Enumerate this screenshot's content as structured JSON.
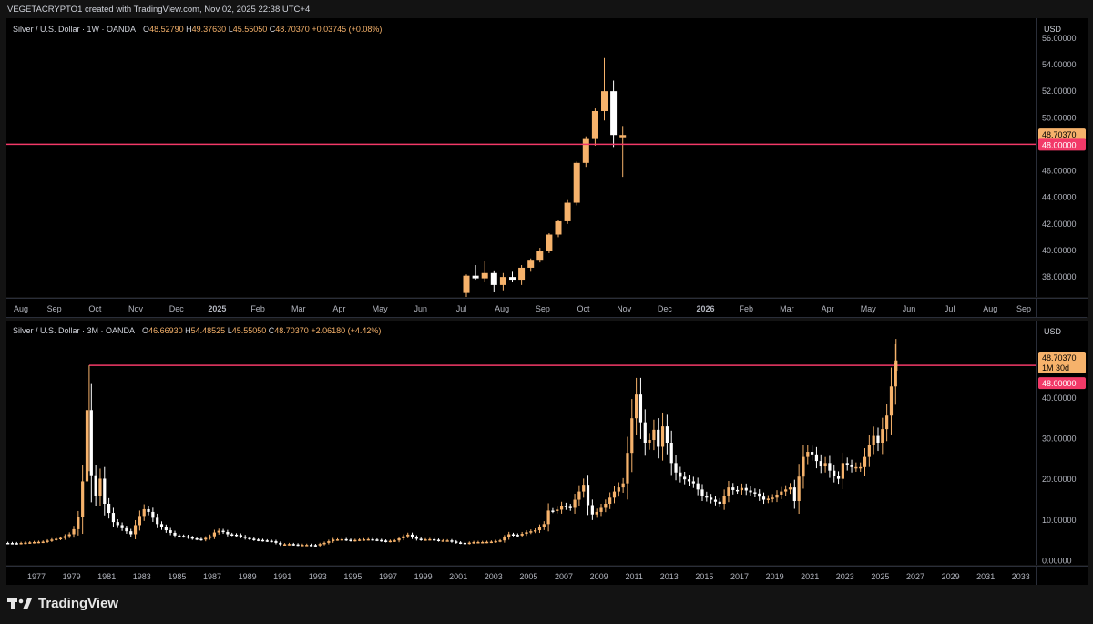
{
  "header": {
    "text": "VEGETACRYPTO1 created with TradingView.com, Nov 02, 2025 22:38 UTC+4"
  },
  "footer": {
    "brand": "TradingView"
  },
  "colors": {
    "up": "#f6b26b",
    "down": "#ffffff",
    "level": "#f23968",
    "background": "#000000",
    "last_price_bg": "#f6b26b"
  },
  "chart_data": [
    {
      "type": "candlestick",
      "title": "Silver / U.S. Dollar · 1W · OANDA",
      "ohlc": {
        "O": "48.52790",
        "H": "49.37630",
        "L": "45.55050",
        "C": "48.70370",
        "change": "+0.03745 (+0.08%)"
      },
      "currency": "USD",
      "ylim": [
        36.5,
        57.5
      ],
      "y_ticks": [
        38,
        40,
        42,
        44,
        46,
        48,
        50,
        52,
        54,
        56
      ],
      "y_tick_labels": [
        "38.00000",
        "40.00000",
        "42.00000",
        "44.00000",
        "46.00000",
        "48.00000",
        "50.00000",
        "52.00000",
        "54.00000",
        "56.00000"
      ],
      "x_labels": [
        "Aug",
        "Sep",
        "Oct",
        "Nov",
        "Dec",
        "2025",
        "Feb",
        "Mar",
        "Apr",
        "May",
        "Jun",
        "Jul",
        "Aug",
        "Sep",
        "Oct",
        "Nov",
        "Dec",
        "2026",
        "Feb",
        "Mar",
        "Apr",
        "May",
        "Jun",
        "Jul",
        "Aug",
        "Sep"
      ],
      "x_label_bold": [
        "2025",
        "2026"
      ],
      "horizontal_level": 48.0,
      "level_label": "48.00000",
      "last_price": "48.70370",
      "candles": [
        {
          "o": 36.8,
          "h": 38.2,
          "l": 36.5,
          "c": 38.1
        },
        {
          "o": 38.1,
          "h": 38.9,
          "l": 37.8,
          "c": 37.9
        },
        {
          "o": 37.9,
          "h": 39.2,
          "l": 37.6,
          "c": 38.3
        },
        {
          "o": 38.3,
          "h": 38.5,
          "l": 36.9,
          "c": 37.4
        },
        {
          "o": 37.4,
          "h": 38.3,
          "l": 37.0,
          "c": 38.0
        },
        {
          "o": 38.0,
          "h": 38.4,
          "l": 37.6,
          "c": 37.8
        },
        {
          "o": 37.8,
          "h": 38.9,
          "l": 37.4,
          "c": 38.7
        },
        {
          "o": 38.7,
          "h": 39.4,
          "l": 38.4,
          "c": 39.3
        },
        {
          "o": 39.3,
          "h": 40.2,
          "l": 39.1,
          "c": 40.0
        },
        {
          "o": 40.0,
          "h": 41.3,
          "l": 39.8,
          "c": 41.2
        },
        {
          "o": 41.2,
          "h": 42.3,
          "l": 41.0,
          "c": 42.2
        },
        {
          "o": 42.2,
          "h": 43.8,
          "l": 42.0,
          "c": 43.6
        },
        {
          "o": 43.6,
          "h": 46.7,
          "l": 43.4,
          "c": 46.6
        },
        {
          "o": 46.6,
          "h": 48.6,
          "l": 46.3,
          "c": 48.4
        },
        {
          "o": 48.4,
          "h": 50.7,
          "l": 47.9,
          "c": 50.5
        },
        {
          "o": 50.5,
          "h": 54.5,
          "l": 49.8,
          "c": 52.0
        },
        {
          "o": 52.0,
          "h": 52.8,
          "l": 47.8,
          "c": 48.7
        },
        {
          "o": 48.53,
          "h": 49.38,
          "l": 45.55,
          "c": 48.7
        }
      ]
    },
    {
      "type": "candlestick",
      "title": "Silver / U.S. Dollar · 3M · OANDA",
      "ohlc": {
        "O": "46.66930",
        "H": "54.48525",
        "L": "45.55050",
        "C": "48.70370",
        "change": "+2.06180 (+4.42%)"
      },
      "currency": "USD",
      "ylim": [
        -1,
        59
      ],
      "y_ticks": [
        0,
        10,
        20,
        30,
        40
      ],
      "y_tick_labels": [
        "0.00000",
        "10.00000",
        "20.00000",
        "30.00000",
        "40.00000"
      ],
      "x_labels": [
        "1977",
        "1979",
        "1981",
        "1983",
        "1985",
        "1987",
        "1989",
        "1991",
        "1993",
        "1995",
        "1997",
        "1999",
        "2001",
        "2003",
        "2005",
        "2007",
        "2009",
        "2011",
        "2013",
        "2015",
        "2017",
        "2019",
        "2021",
        "2023",
        "2025",
        "2027",
        "2029",
        "2031",
        "2033"
      ],
      "x_label_years": [
        1977,
        1979,
        1981,
        1983,
        1985,
        1987,
        1989,
        1991,
        1993,
        1995,
        1997,
        1999,
        2001,
        2003,
        2005,
        2007,
        2009,
        2011,
        2013,
        2015,
        2017,
        2019,
        2021,
        2023,
        2025,
        2027,
        2029,
        2031,
        2033
      ],
      "horizontal_level": 48.0,
      "level_start_year": 1980.0,
      "level_label": "48.00000",
      "last_price": "48.70370",
      "countdown": "1M 30d",
      "price_path": [
        [
          1975.0,
          4.4
        ],
        [
          1976.0,
          4.3
        ],
        [
          1977.0,
          4.6
        ],
        [
          1977.5,
          4.7
        ],
        [
          1978.0,
          5.2
        ],
        [
          1978.5,
          5.6
        ],
        [
          1979.0,
          6.5
        ],
        [
          1979.3,
          8.0
        ],
        [
          1979.6,
          12
        ],
        [
          1979.8,
          22
        ],
        [
          1980.0,
          37
        ],
        [
          1980.2,
          22
        ],
        [
          1980.5,
          16
        ],
        [
          1980.8,
          21
        ],
        [
          1981.0,
          14
        ],
        [
          1981.5,
          9.5
        ],
        [
          1982.0,
          8
        ],
        [
          1982.5,
          6.5
        ],
        [
          1983.0,
          11
        ],
        [
          1983.3,
          13
        ],
        [
          1983.6,
          11.5
        ],
        [
          1984.0,
          9
        ],
        [
          1984.5,
          7.5
        ],
        [
          1985.0,
          6.2
        ],
        [
          1985.5,
          6
        ],
        [
          1986.0,
          5.5
        ],
        [
          1986.5,
          5.2
        ],
        [
          1987.0,
          6
        ],
        [
          1987.4,
          7.5
        ],
        [
          1987.8,
          7
        ],
        [
          1988.0,
          6.5
        ],
        [
          1988.5,
          6.3
        ],
        [
          1989.0,
          5.6
        ],
        [
          1989.5,
          5.2
        ],
        [
          1990.0,
          5
        ],
        [
          1990.5,
          4.8
        ],
        [
          1991.0,
          4
        ],
        [
          1991.5,
          4.1
        ],
        [
          1992.0,
          3.9
        ],
        [
          1992.5,
          3.9
        ],
        [
          1993.0,
          3.8
        ],
        [
          1993.5,
          4.4
        ],
        [
          1994.0,
          5.2
        ],
        [
          1994.5,
          5.3
        ],
        [
          1995.0,
          5
        ],
        [
          1995.5,
          5.2
        ],
        [
          1996.0,
          5.3
        ],
        [
          1996.5,
          5.1
        ],
        [
          1997.0,
          4.8
        ],
        [
          1997.5,
          5
        ],
        [
          1998.0,
          6
        ],
        [
          1998.3,
          6.5
        ],
        [
          1998.6,
          5.5
        ],
        [
          1999.0,
          5.2
        ],
        [
          1999.5,
          5.3
        ],
        [
          2000.0,
          5
        ],
        [
          2000.5,
          5
        ],
        [
          2001.0,
          4.5
        ],
        [
          2001.5,
          4.3
        ],
        [
          2002.0,
          4.6
        ],
        [
          2002.5,
          4.6
        ],
        [
          2003.0,
          4.7
        ],
        [
          2003.5,
          5
        ],
        [
          2004.0,
          6.5
        ],
        [
          2004.5,
          6.2
        ],
        [
          2005.0,
          7
        ],
        [
          2005.5,
          7.5
        ],
        [
          2006.0,
          9
        ],
        [
          2006.3,
          13
        ],
        [
          2006.6,
          12
        ],
        [
          2007.0,
          13.5
        ],
        [
          2007.5,
          13
        ],
        [
          2008.0,
          17
        ],
        [
          2008.3,
          19
        ],
        [
          2008.6,
          11
        ],
        [
          2009.0,
          12
        ],
        [
          2009.5,
          14
        ],
        [
          2010.0,
          17
        ],
        [
          2010.5,
          19
        ],
        [
          2010.8,
          28
        ],
        [
          2011.0,
          35
        ],
        [
          2011.3,
          42
        ],
        [
          2011.6,
          30
        ],
        [
          2011.9,
          28
        ],
        [
          2012.2,
          33
        ],
        [
          2012.5,
          28
        ],
        [
          2012.8,
          34
        ],
        [
          2013.0,
          29
        ],
        [
          2013.3,
          23
        ],
        [
          2013.6,
          21
        ],
        [
          2014.0,
          20
        ],
        [
          2014.5,
          19
        ],
        [
          2015.0,
          16
        ],
        [
          2015.5,
          15
        ],
        [
          2016.0,
          14
        ],
        [
          2016.5,
          18
        ],
        [
          2016.9,
          17
        ],
        [
          2017.2,
          18
        ],
        [
          2017.6,
          17
        ],
        [
          2018.0,
          16.5
        ],
        [
          2018.5,
          15
        ],
        [
          2019.0,
          15.5
        ],
        [
          2019.5,
          17
        ],
        [
          2020.0,
          18
        ],
        [
          2020.3,
          14
        ],
        [
          2020.6,
          24
        ],
        [
          2020.9,
          27
        ],
        [
          2021.3,
          26
        ],
        [
          2021.7,
          23
        ],
        [
          2022.0,
          24
        ],
        [
          2022.4,
          21
        ],
        [
          2022.8,
          20
        ],
        [
          2023.0,
          24
        ],
        [
          2023.5,
          23
        ],
        [
          2024.0,
          23
        ],
        [
          2024.3,
          26
        ],
        [
          2024.7,
          31
        ],
        [
          2025.0,
          29
        ],
        [
          2025.3,
          33
        ],
        [
          2025.6,
          37
        ],
        [
          2025.85,
          46.7
        ],
        [
          2026.0,
          48.7
        ]
      ]
    }
  ]
}
